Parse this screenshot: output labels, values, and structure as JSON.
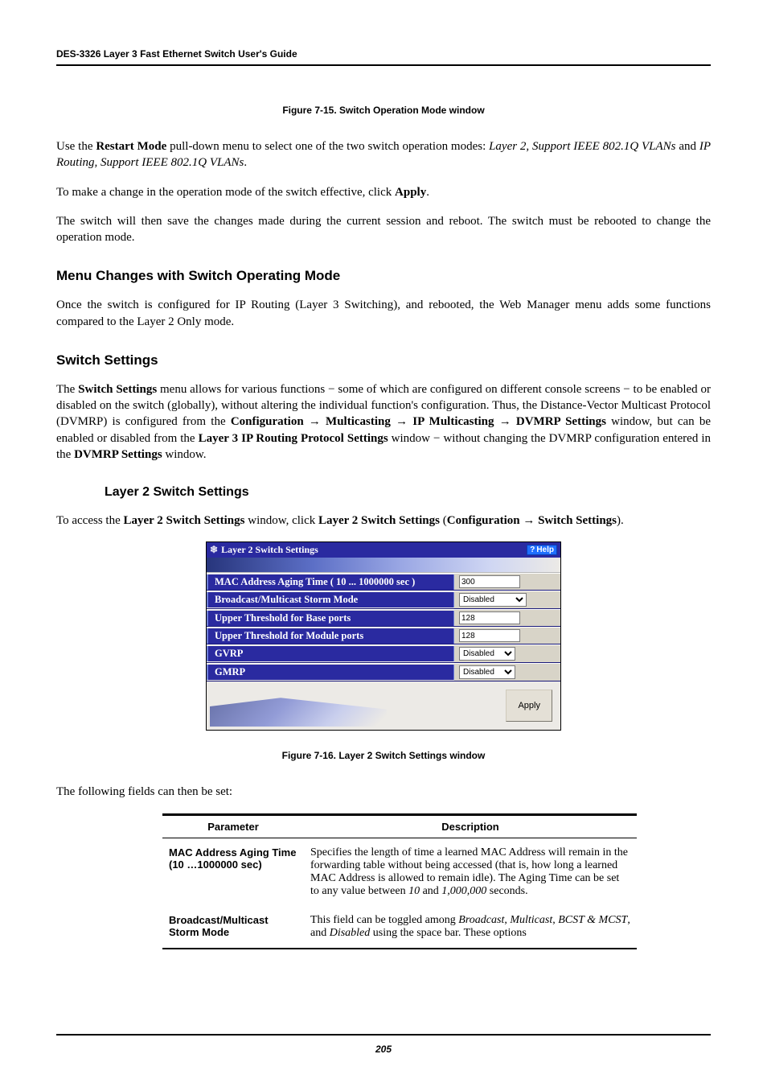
{
  "header": {
    "running": "DES-3326 Layer 3 Fast Ethernet Switch User's Guide"
  },
  "fig15_caption": "Figure 7-15.  Switch Operation Mode window",
  "para1_a": "Use the ",
  "para1_b": "Restart Mode",
  "para1_c": " pull-down menu to select one of the two switch operation modes: ",
  "para1_d": "Layer 2, Support IEEE 802.1Q VLANs",
  "para1_e": " and ",
  "para1_f": "IP Routing, Support IEEE 802.1Q VLANs",
  "para1_g": ".",
  "para2_a": "To make a change in the operation mode of the switch effective, click ",
  "para2_b": "Apply",
  "para2_c": ".",
  "para3": "The switch will then save the changes made during the current session and reboot. The switch must be rebooted to change the operation mode.",
  "h2_menu": "Menu Changes with Switch Operating Mode",
  "para4": "Once the switch is configured for IP Routing (Layer 3 Switching), and rebooted, the Web Manager menu adds some functions compared to the Layer 2 Only mode.",
  "h2_switch": "Switch Settings",
  "para5_a": "The ",
  "para5_b": "Switch Settings",
  "para5_c": " menu allows for various functions − some of which are configured on different console screens − to be enabled or disabled on the switch (globally), without altering the individual function's configuration. Thus, the Distance-Vector Multicast Protocol (DVMRP) is configured from the ",
  "para5_d": "Configuration → Multicasting → IP Multicasting → DVMRP Settings",
  "para5_e": " window, but can be enabled or disabled from the ",
  "para5_f": "Layer 3 IP Routing Protocol Settings",
  "para5_g": " window − without changing the DVMRP configuration entered in the ",
  "para5_h": "DVMRP Settings",
  "para5_i": " window.",
  "h3_l2": "Layer 2 Switch Settings",
  "para6_a": "To access the ",
  "para6_b": "Layer 2 Switch Settings",
  "para6_c": " window, click ",
  "para6_d": "Layer 2 Switch Settings",
  "para6_e": " (",
  "para6_f": "Configuration → Switch Settings",
  "para6_g": ").",
  "screenshot": {
    "title": "Layer 2 Switch Settings",
    "help_label": "Help",
    "rows": {
      "mac_aging": {
        "label": "MAC Address Aging Time ( 10 ... 1000000 sec )",
        "value": "300"
      },
      "storm": {
        "label": "Broadcast/Multicast Storm Mode",
        "value": "Disabled"
      },
      "upper_base": {
        "label": "Upper Threshold for Base ports",
        "value": "128"
      },
      "upper_module": {
        "label": "Upper Threshold for Module ports",
        "value": "128"
      },
      "gvrp": {
        "label": "GVRP",
        "value": "Disabled"
      },
      "gmrp": {
        "label": "GMRP",
        "value": "Disabled"
      }
    },
    "apply_label": "Apply"
  },
  "fig16_caption": "Figure 7-16.  Layer 2 Switch Settings window",
  "para7": "The following fields can then be set:",
  "param_table": {
    "col_param": "Parameter",
    "col_desc": "Description",
    "row1_param": "MAC Address Aging Time (10 …1000000 sec)",
    "row1_desc_a": "Specifies the length of time a learned MAC Address will remain in the forwarding table without being accessed (that is, how long a learned MAC Address is allowed to remain idle). The Aging Time can be set to any value between ",
    "row1_desc_b": "10",
    "row1_desc_c": " and ",
    "row1_desc_d": "1,000,000",
    "row1_desc_e": " seconds.",
    "row2_param": "Broadcast/Multicast Storm Mode",
    "row2_desc_a": "This field can be toggled among ",
    "row2_desc_b": "Broadcast",
    "row2_desc_c": ", ",
    "row2_desc_d": "Multicast",
    "row2_desc_e": ", ",
    "row2_desc_f": "BCST & MCST",
    "row2_desc_g": ", and ",
    "row2_desc_h": "Disabled",
    "row2_desc_i": " using the space bar. These options"
  },
  "page_number": "205"
}
